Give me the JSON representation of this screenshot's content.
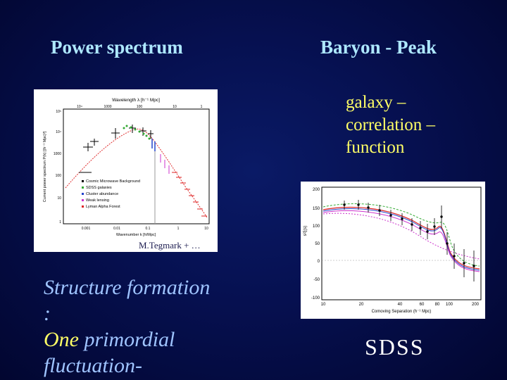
{
  "slide": {
    "left_heading": "Power spectrum",
    "right_heading": "Baryon - Peak",
    "gcf_line1": "galaxy –",
    "gcf_line2": "correlation –",
    "gcf_line3": "function",
    "caption": "M.Tegmark + …",
    "sdss": "SDSS",
    "structure_line1": "Structure formation",
    "structure_line2": ":",
    "structure_one": "One",
    "structure_line3_rest": " primordial",
    "structure_line4": " fluctuation-"
  },
  "power_spectrum_figure": {
    "top_axis_label": "Wavelength λ [h⁻¹ Mpc]",
    "top_ticks": [
      "10⁴",
      "1000",
      "100",
      "10",
      "1"
    ],
    "x_axis_label": "Wavenumber k [h/Mpc]",
    "x_ticks": [
      "0.001",
      "0.01",
      "0.1",
      "1",
      "10"
    ],
    "y_axis_label": "Current power spectrum P(k) [(h⁻¹ Mpc)³]",
    "y_ticks": [
      "10⁵",
      "10⁴",
      "1000",
      "100",
      "10",
      "1"
    ],
    "legend": [
      {
        "label": "Cosmic Microwave Background",
        "color": "#000000"
      },
      {
        "label": "SDSS galaxies",
        "color": "#33aa33"
      },
      {
        "label": "Cluster abundance",
        "color": "#2244cc"
      },
      {
        "label": "Weak lensing",
        "color": "#cc33cc"
      },
      {
        "label": "Lyman Alpha Forest",
        "color": "#dd2222"
      }
    ]
  },
  "correlation_figure": {
    "x_axis_label": "Comoving Separation (h⁻¹ Mpc)",
    "x_ticks": [
      "10",
      "20",
      "40",
      "60",
      "80",
      "100",
      "200"
    ],
    "y_axis_label": "s²ξ(s)",
    "y_ticks": [
      "200",
      "150",
      "100",
      "50",
      "0",
      "-50",
      "-100"
    ]
  }
}
